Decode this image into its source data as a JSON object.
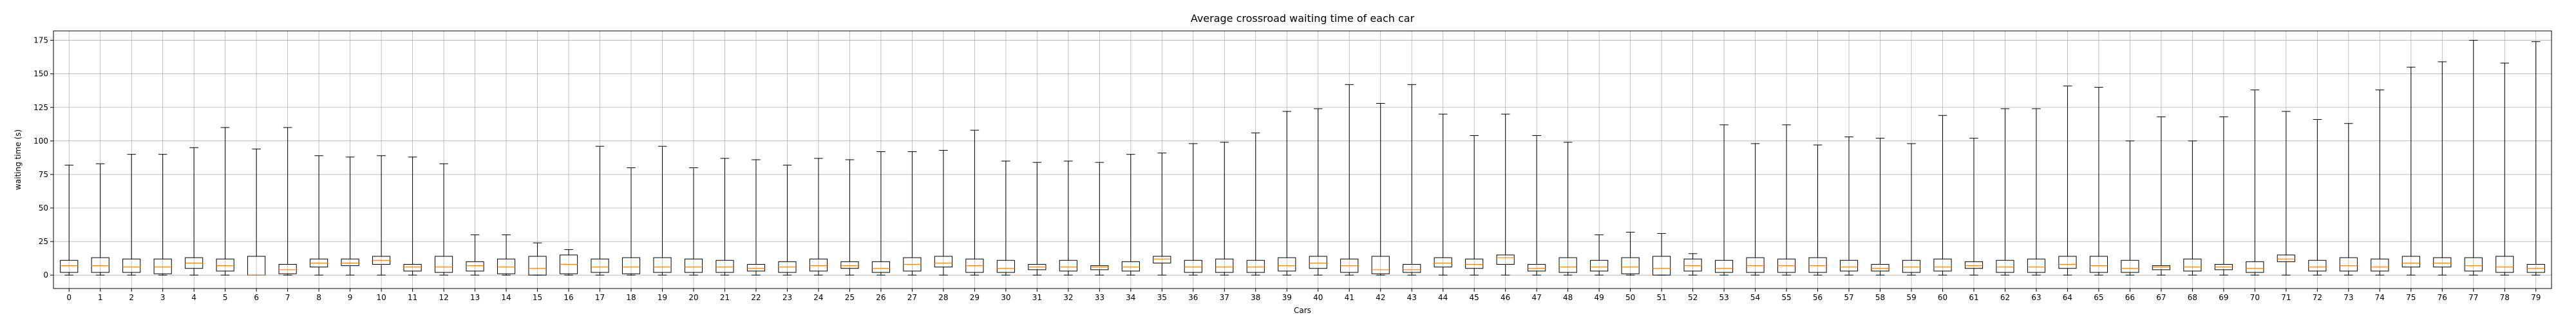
{
  "chart_data": {
    "type": "boxplot",
    "title": "Average crossroad waiting time of each car",
    "xlabel": "Cars",
    "ylabel": "waiting time (s)",
    "ylim": [
      -10,
      182
    ],
    "yticks": [
      0,
      25,
      50,
      75,
      100,
      125,
      150,
      175
    ],
    "grid": true,
    "colors": {
      "box": "#000000",
      "median": "#ff7f0e",
      "grid": "#b0b0b0"
    },
    "categories": [
      "0",
      "1",
      "2",
      "3",
      "4",
      "5",
      "6",
      "7",
      "8",
      "9",
      "10",
      "11",
      "12",
      "13",
      "14",
      "15",
      "16",
      "17",
      "18",
      "19",
      "20",
      "21",
      "22",
      "23",
      "24",
      "25",
      "26",
      "27",
      "28",
      "29",
      "30",
      "31",
      "32",
      "33",
      "34",
      "35",
      "36",
      "37",
      "38",
      "39",
      "40",
      "41",
      "42",
      "43",
      "44",
      "45",
      "46",
      "47",
      "48",
      "49",
      "50",
      "51",
      "52",
      "53",
      "54",
      "55",
      "56",
      "57",
      "58",
      "59",
      "60",
      "61",
      "62",
      "63",
      "64",
      "65",
      "66",
      "67",
      "68",
      "69",
      "70",
      "71",
      "72",
      "73",
      "74",
      "75",
      "76",
      "77",
      "78",
      "79"
    ],
    "boxes": [
      {
        "low": 0,
        "q1": 2,
        "median": 7,
        "q3": 11,
        "high": 82
      },
      {
        "low": 0,
        "q1": 2,
        "median": 7,
        "q3": 13,
        "high": 83
      },
      {
        "low": 0,
        "q1": 2,
        "median": 6,
        "q3": 12,
        "high": 90
      },
      {
        "low": 0,
        "q1": 1,
        "median": 6,
        "q3": 12,
        "high": 90
      },
      {
        "low": 0,
        "q1": 5,
        "median": 9,
        "q3": 13,
        "high": 95
      },
      {
        "low": 0,
        "q1": 3,
        "median": 7,
        "q3": 12,
        "high": 110
      },
      {
        "low": 0,
        "q1": 0,
        "median": 0,
        "q3": 14,
        "high": 94
      },
      {
        "low": 0,
        "q1": 1,
        "median": 4,
        "q3": 8,
        "high": 110
      },
      {
        "low": 0,
        "q1": 6,
        "median": 9,
        "q3": 12,
        "high": 89
      },
      {
        "low": 0,
        "q1": 7,
        "median": 9,
        "q3": 12,
        "high": 88
      },
      {
        "low": 0,
        "q1": 8,
        "median": 11,
        "q3": 14,
        "high": 89
      },
      {
        "low": 0,
        "q1": 3,
        "median": 6,
        "q3": 8,
        "high": 88
      },
      {
        "low": 0,
        "q1": 2,
        "median": 6,
        "q3": 14,
        "high": 83
      },
      {
        "low": 0,
        "q1": 3,
        "median": 7,
        "q3": 10,
        "high": 30
      },
      {
        "low": 0,
        "q1": 1,
        "median": 6,
        "q3": 12,
        "high": 30
      },
      {
        "low": 0,
        "q1": 0,
        "median": 5,
        "q3": 14,
        "high": 24
      },
      {
        "low": 0,
        "q1": 1,
        "median": 8,
        "q3": 15,
        "high": 19
      },
      {
        "low": 0,
        "q1": 2,
        "median": 6,
        "q3": 12,
        "high": 96
      },
      {
        "low": 0,
        "q1": 1,
        "median": 6,
        "q3": 13,
        "high": 80
      },
      {
        "low": 0,
        "q1": 2,
        "median": 6,
        "q3": 13,
        "high": 96
      },
      {
        "low": 0,
        "q1": 2,
        "median": 6,
        "q3": 12,
        "high": 80
      },
      {
        "low": 0,
        "q1": 2,
        "median": 6,
        "q3": 11,
        "high": 87
      },
      {
        "low": 0,
        "q1": 3,
        "median": 5,
        "q3": 8,
        "high": 86
      },
      {
        "low": 0,
        "q1": 2,
        "median": 6,
        "q3": 10,
        "high": 82
      },
      {
        "low": 0,
        "q1": 3,
        "median": 7,
        "q3": 12,
        "high": 87
      },
      {
        "low": 0,
        "q1": 5,
        "median": 7,
        "q3": 10,
        "high": 86
      },
      {
        "low": 0,
        "q1": 2,
        "median": 5,
        "q3": 10,
        "high": 92
      },
      {
        "low": 0,
        "q1": 3,
        "median": 8,
        "q3": 13,
        "high": 92
      },
      {
        "low": 0,
        "q1": 6,
        "median": 9,
        "q3": 14,
        "high": 93
      },
      {
        "low": 0,
        "q1": 2,
        "median": 7,
        "q3": 12,
        "high": 108
      },
      {
        "low": 0,
        "q1": 2,
        "median": 5,
        "q3": 11,
        "high": 85
      },
      {
        "low": 0,
        "q1": 4,
        "median": 6,
        "q3": 8,
        "high": 84
      },
      {
        "low": 0,
        "q1": 3,
        "median": 6,
        "q3": 11,
        "high": 85
      },
      {
        "low": 0,
        "q1": 4,
        "median": 6,
        "q3": 7,
        "high": 84
      },
      {
        "low": 0,
        "q1": 3,
        "median": 6,
        "q3": 10,
        "high": 90
      },
      {
        "low": 0,
        "q1": 9,
        "median": 12,
        "q3": 14,
        "high": 91
      },
      {
        "low": 0,
        "q1": 2,
        "median": 6,
        "q3": 11,
        "high": 98
      },
      {
        "low": 0,
        "q1": 2,
        "median": 6,
        "q3": 12,
        "high": 99
      },
      {
        "low": 0,
        "q1": 2,
        "median": 6,
        "q3": 11,
        "high": 106
      },
      {
        "low": 0,
        "q1": 3,
        "median": 7,
        "q3": 13,
        "high": 122
      },
      {
        "low": 0,
        "q1": 5,
        "median": 9,
        "q3": 14,
        "high": 124
      },
      {
        "low": 0,
        "q1": 2,
        "median": 7,
        "q3": 12,
        "high": 142
      },
      {
        "low": 0,
        "q1": 1,
        "median": 4,
        "q3": 14,
        "high": 128
      },
      {
        "low": 0,
        "q1": 2,
        "median": 4,
        "q3": 8,
        "high": 142
      },
      {
        "low": 0,
        "q1": 6,
        "median": 9,
        "q3": 13,
        "high": 120
      },
      {
        "low": 0,
        "q1": 5,
        "median": 8,
        "q3": 12,
        "high": 104
      },
      {
        "low": 0,
        "q1": 8,
        "median": 13,
        "q3": 15,
        "high": 120
      },
      {
        "low": 0,
        "q1": 3,
        "median": 5,
        "q3": 8,
        "high": 104
      },
      {
        "low": 0,
        "q1": 2,
        "median": 6,
        "q3": 13,
        "high": 99
      },
      {
        "low": 0,
        "q1": 3,
        "median": 6,
        "q3": 11,
        "high": 30
      },
      {
        "low": 0,
        "q1": 1,
        "median": 6,
        "q3": 13,
        "high": 32
      },
      {
        "low": 0,
        "q1": 0,
        "median": 5,
        "q3": 14,
        "high": 31
      },
      {
        "low": 0,
        "q1": 3,
        "median": 7,
        "q3": 12,
        "high": 16
      },
      {
        "low": 0,
        "q1": 2,
        "median": 5,
        "q3": 11,
        "high": 112
      },
      {
        "low": 0,
        "q1": 2,
        "median": 7,
        "q3": 13,
        "high": 98
      },
      {
        "low": 0,
        "q1": 2,
        "median": 7,
        "q3": 12,
        "high": 112
      },
      {
        "low": 0,
        "q1": 2,
        "median": 7,
        "q3": 13,
        "high": 97
      },
      {
        "low": 0,
        "q1": 3,
        "median": 6,
        "q3": 11,
        "high": 103
      },
      {
        "low": 0,
        "q1": 3,
        "median": 5,
        "q3": 8,
        "high": 102
      },
      {
        "low": 0,
        "q1": 2,
        "median": 6,
        "q3": 11,
        "high": 98
      },
      {
        "low": 0,
        "q1": 3,
        "median": 6,
        "q3": 12,
        "high": 119
      },
      {
        "low": 0,
        "q1": 5,
        "median": 7,
        "q3": 10,
        "high": 102
      },
      {
        "low": 0,
        "q1": 2,
        "median": 6,
        "q3": 11,
        "high": 124
      },
      {
        "low": 0,
        "q1": 2,
        "median": 6,
        "q3": 12,
        "high": 124
      },
      {
        "low": 0,
        "q1": 5,
        "median": 8,
        "q3": 14,
        "high": 141
      },
      {
        "low": 0,
        "q1": 2,
        "median": 7,
        "q3": 14,
        "high": 140
      },
      {
        "low": 0,
        "q1": 2,
        "median": 5,
        "q3": 11,
        "high": 100
      },
      {
        "low": 0,
        "q1": 4,
        "median": 6,
        "q3": 7,
        "high": 118
      },
      {
        "low": 0,
        "q1": 3,
        "median": 6,
        "q3": 12,
        "high": 100
      },
      {
        "low": 0,
        "q1": 4,
        "median": 6,
        "q3": 8,
        "high": 118
      },
      {
        "low": 0,
        "q1": 2,
        "median": 5,
        "q3": 10,
        "high": 138
      },
      {
        "low": 0,
        "q1": 10,
        "median": 12,
        "q3": 15,
        "high": 122
      },
      {
        "low": 0,
        "q1": 3,
        "median": 6,
        "q3": 11,
        "high": 116
      },
      {
        "low": 0,
        "q1": 3,
        "median": 7,
        "q3": 13,
        "high": 113
      },
      {
        "low": 0,
        "q1": 3,
        "median": 6,
        "q3": 12,
        "high": 138
      },
      {
        "low": 0,
        "q1": 6,
        "median": 9,
        "q3": 14,
        "high": 155
      },
      {
        "low": 0,
        "q1": 6,
        "median": 9,
        "q3": 13,
        "high": 159
      },
      {
        "low": 0,
        "q1": 3,
        "median": 7,
        "q3": 13,
        "high": 175
      },
      {
        "low": 0,
        "q1": 2,
        "median": 6,
        "q3": 14,
        "high": 158
      },
      {
        "low": 0,
        "q1": 2,
        "median": 5,
        "q3": 8,
        "high": 174
      }
    ]
  }
}
